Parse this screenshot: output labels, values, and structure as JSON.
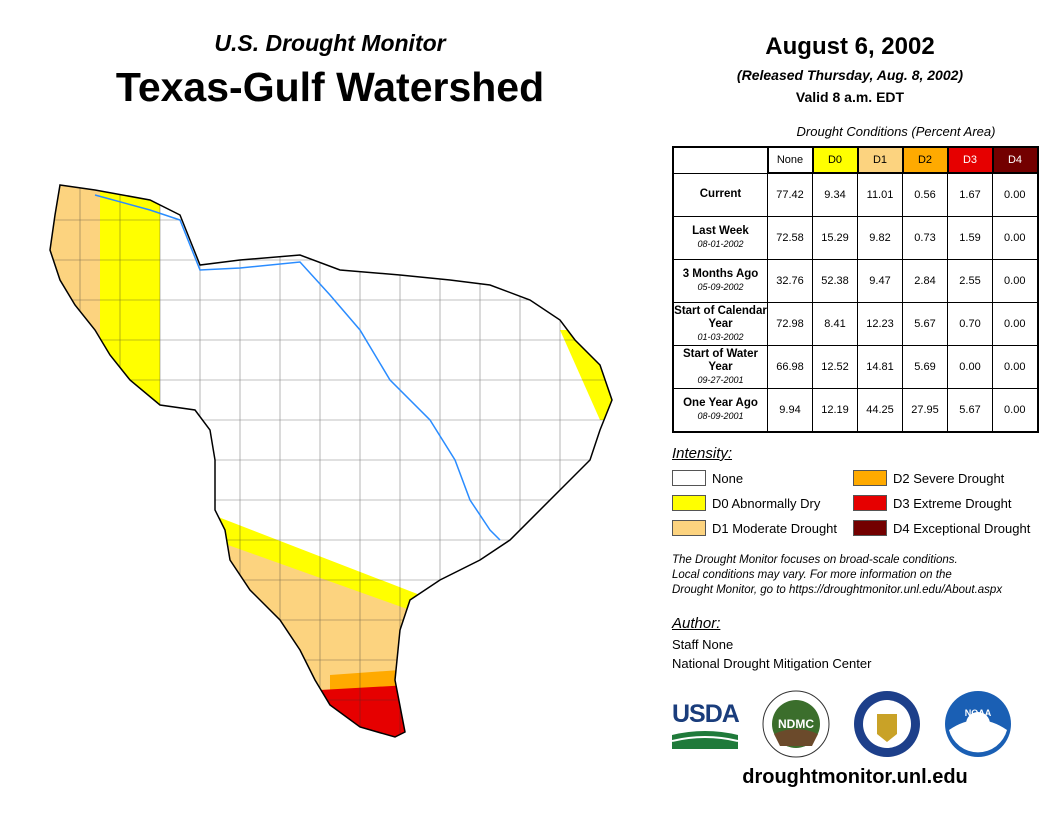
{
  "header": {
    "subtitle": "U.S. Drought Monitor",
    "title": "Texas-Gulf Watershed",
    "date": "August 6, 2002",
    "released": "(Released Thursday, Aug. 8, 2002)",
    "valid": "Valid 8 a.m. EDT"
  },
  "table": {
    "caption": "Drought Conditions (Percent Area)",
    "columns": [
      "None",
      "D0",
      "D1",
      "D2",
      "D3",
      "D4"
    ],
    "rows": [
      {
        "label": "Current",
        "date": "",
        "values": [
          "77.42",
          "9.34",
          "11.01",
          "0.56",
          "1.67",
          "0.00"
        ]
      },
      {
        "label": "Last Week",
        "date": "08-01-2002",
        "values": [
          "72.58",
          "15.29",
          "9.82",
          "0.73",
          "1.59",
          "0.00"
        ]
      },
      {
        "label": "3 Months Ago",
        "date": "05-09-2002",
        "values": [
          "32.76",
          "52.38",
          "9.47",
          "2.84",
          "2.55",
          "0.00"
        ]
      },
      {
        "label": "Start of Calendar Year",
        "date": "01-03-2002",
        "values": [
          "72.98",
          "8.41",
          "12.23",
          "5.67",
          "0.70",
          "0.00"
        ]
      },
      {
        "label": "Start of Water Year",
        "date": "09-27-2001",
        "values": [
          "66.98",
          "12.52",
          "14.81",
          "5.69",
          "0.00",
          "0.00"
        ]
      },
      {
        "label": "One Year Ago",
        "date": "08-09-2001",
        "values": [
          "9.94",
          "12.19",
          "44.25",
          "27.95",
          "5.67",
          "0.00"
        ]
      }
    ]
  },
  "legend": {
    "title": "Intensity:",
    "items": [
      {
        "label": "None",
        "color": "#ffffff"
      },
      {
        "label": "D0 Abnormally Dry",
        "color": "#ffff00"
      },
      {
        "label": "D1 Moderate Drought",
        "color": "#fcd37f"
      },
      {
        "label": "D2 Severe Drought",
        "color": "#ffaa00"
      },
      {
        "label": "D3 Extreme Drought",
        "color": "#e60000"
      },
      {
        "label": "D4 Exceptional Drought",
        "color": "#730000"
      }
    ]
  },
  "note": [
    "The Drought Monitor focuses on broad-scale conditions.",
    "Local conditions may vary. For more information on the",
    "Drought Monitor, go to https://droughtmonitor.unl.edu/About.aspx"
  ],
  "author": {
    "title": "Author:",
    "name": "Staff None",
    "org": "National Drought Mitigation Center"
  },
  "logos": {
    "usda": "USDA",
    "ndmc": "NDMC",
    "noaa": "NOAA"
  },
  "footer": {
    "url": "droughtmonitor.unl.edu"
  }
}
